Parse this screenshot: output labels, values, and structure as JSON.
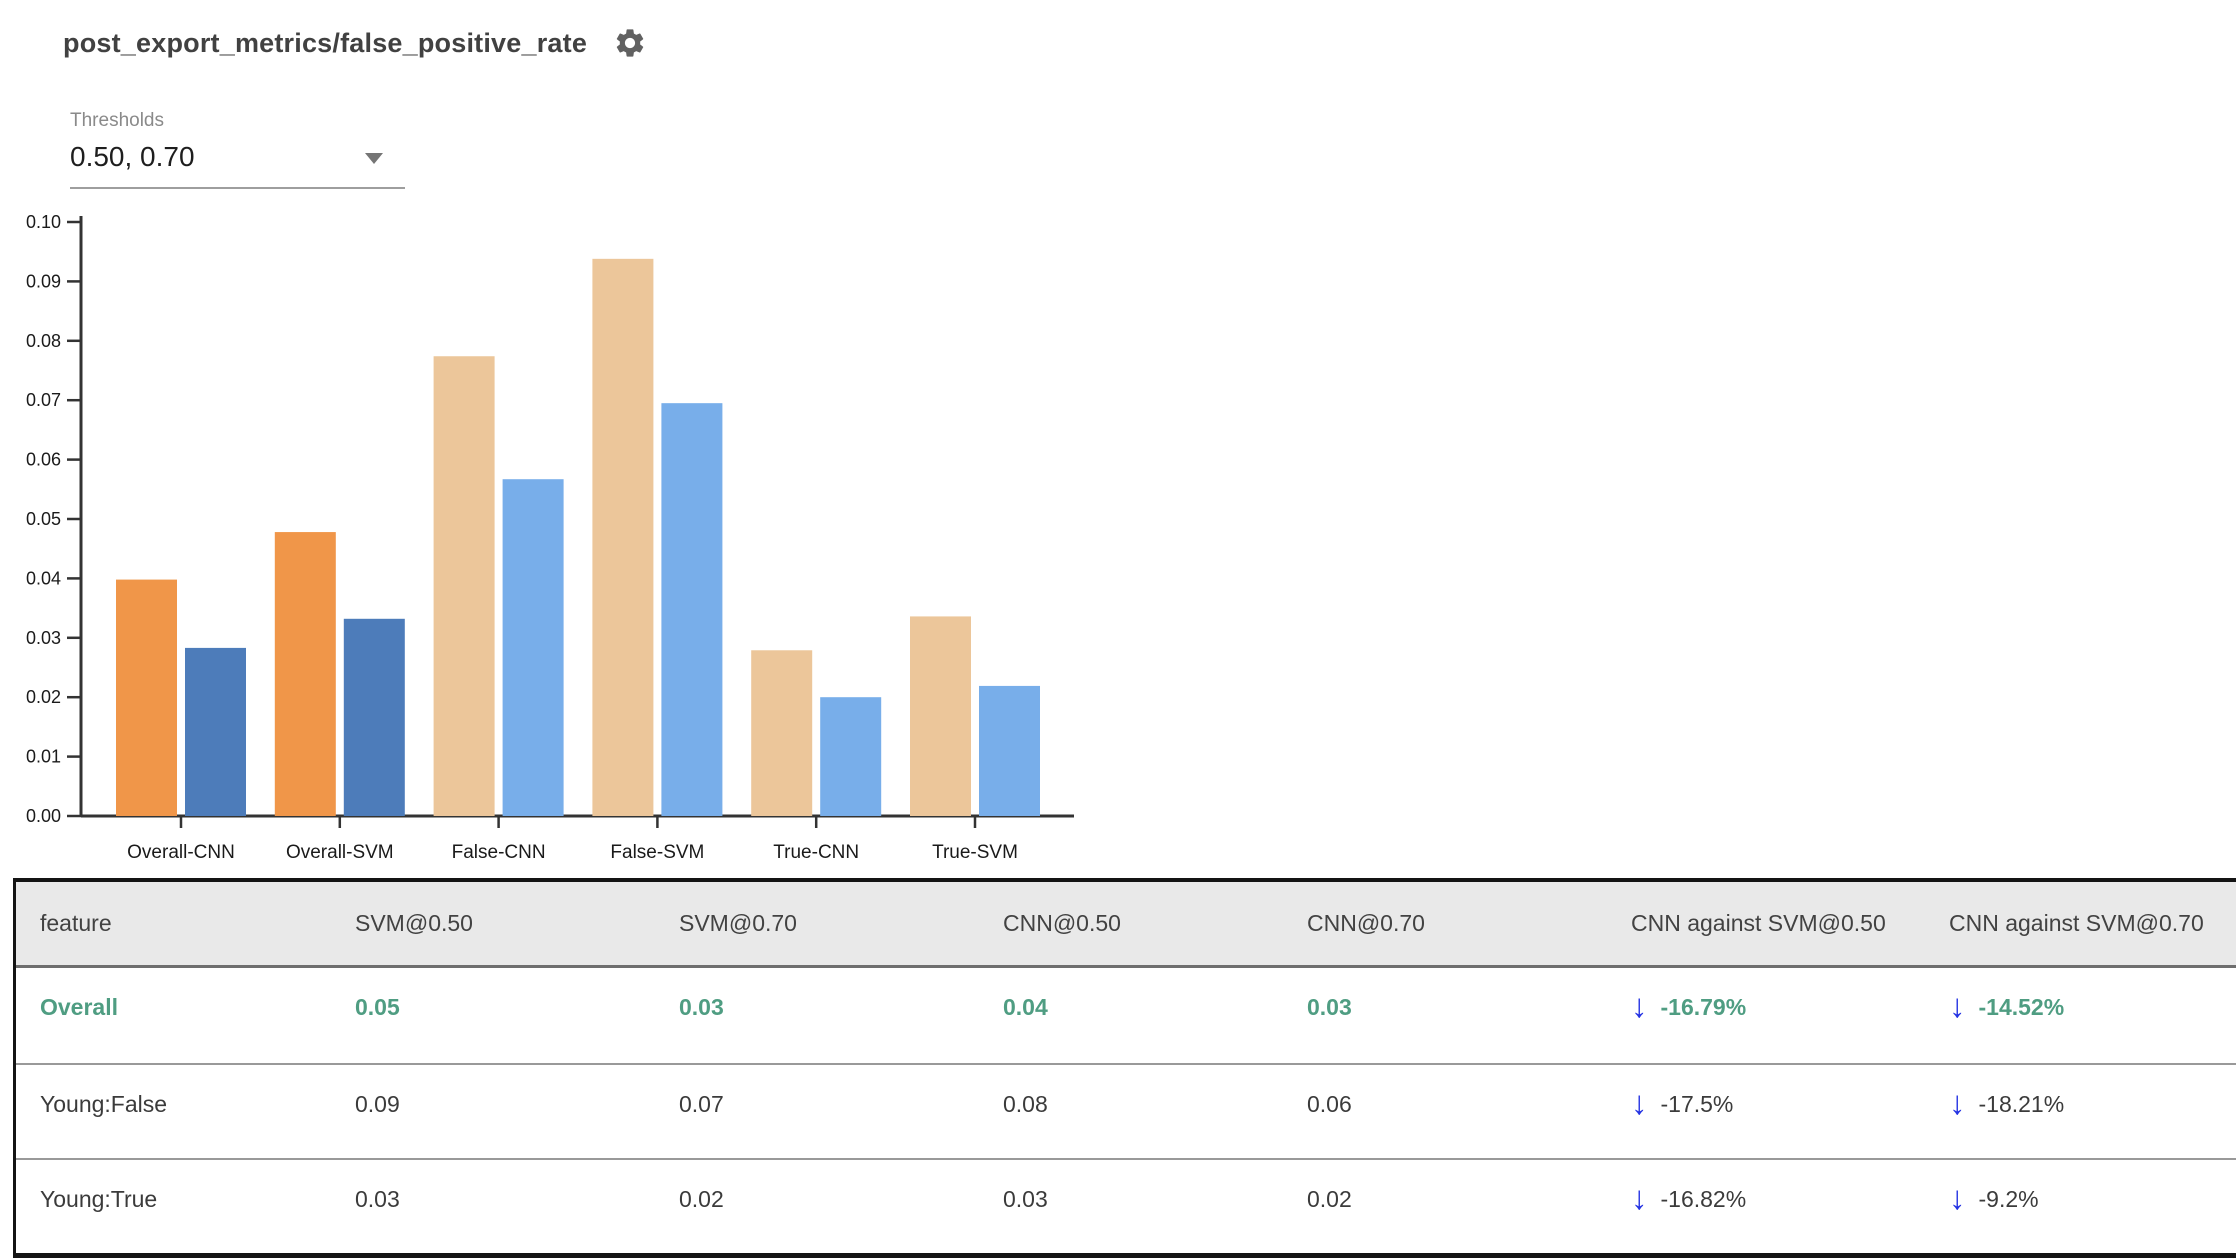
{
  "header": {
    "title": "post_export_metrics/false_positive_rate",
    "settings_icon": "gear-icon"
  },
  "thresholds": {
    "label": "Thresholds",
    "value": "0.50, 0.70"
  },
  "chart_data": {
    "type": "bar",
    "title": "",
    "xlabel": "",
    "ylabel": "",
    "categories": [
      "Overall-CNN",
      "Overall-SVM",
      "False-CNN",
      "False-SVM",
      "True-CNN",
      "True-SVM"
    ],
    "series": [
      {
        "name": "threshold 0.50",
        "values": [
          0.0398,
          0.0478,
          0.0774,
          0.0938,
          0.0279,
          0.0336
        ]
      },
      {
        "name": "threshold 0.70",
        "values": [
          0.0283,
          0.0332,
          0.0567,
          0.0695,
          0.02,
          0.0219
        ]
      }
    ],
    "ylim": [
      0,
      0.1
    ],
    "yticks": [
      "0.00",
      "0.01",
      "0.02",
      "0.03",
      "0.04",
      "0.05",
      "0.06",
      "0.07",
      "0.08",
      "0.09",
      "0.10"
    ],
    "grid": false,
    "legend": "none",
    "highlight_categories": [
      "Overall-CNN",
      "Overall-SVM"
    ],
    "colors": {
      "series1_highlight": "#f09649",
      "series2_highlight": "#4d7cba",
      "series1_muted": "#ecc69a",
      "series2_muted": "#78aeea",
      "axis": "#333333"
    }
  },
  "table": {
    "columns": [
      "feature",
      "SVM@0.50",
      "SVM@0.70",
      "CNN@0.50",
      "CNN@0.70",
      "CNN against SVM@0.50",
      "CNN against SVM@0.70"
    ],
    "rows": [
      {
        "feature": "Overall",
        "values": [
          "0.05",
          "0.03",
          "0.04",
          "0.03"
        ],
        "deltas": [
          "-16.79%",
          "-14.52%"
        ],
        "highlight": true
      },
      {
        "feature": "Young:False",
        "values": [
          "0.09",
          "0.07",
          "0.08",
          "0.06"
        ],
        "deltas": [
          "-17.5%",
          "-18.21%"
        ],
        "highlight": false
      },
      {
        "feature": "Young:True",
        "values": [
          "0.03",
          "0.02",
          "0.03",
          "0.02"
        ],
        "deltas": [
          "-16.82%",
          "-9.2%"
        ],
        "highlight": false
      }
    ],
    "icons": {
      "delta_down": "↓"
    },
    "colors": {
      "highlight_text": "#4f9d82",
      "body_text": "#3b3b3b",
      "arrow_blue": "#2433e3",
      "header_bg": "#e9e9e9"
    }
  }
}
